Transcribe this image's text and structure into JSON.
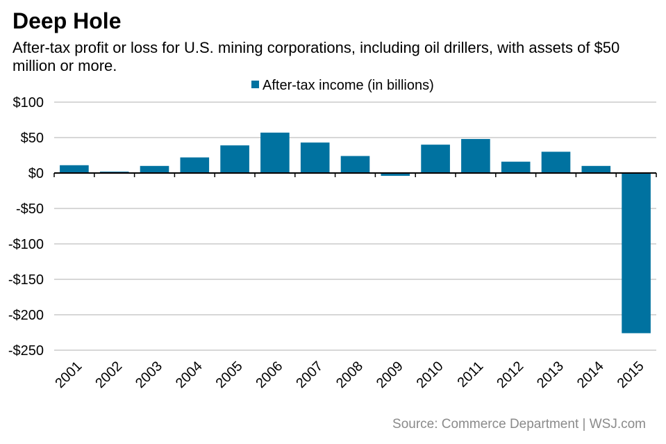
{
  "chart_data": {
    "type": "bar",
    "title": "Deep Hole",
    "subtitle": "After-tax profit or loss for U.S. mining corporations, including oil drillers, with assets of $50 million or more.",
    "categories": [
      "2001",
      "2002",
      "2003",
      "2004",
      "2005",
      "2006",
      "2007",
      "2008",
      "2009",
      "2010",
      "2011",
      "2012",
      "2013",
      "2014",
      "2015"
    ],
    "series": [
      {
        "name": "After-tax income (in billions)",
        "values": [
          11,
          2,
          10,
          22,
          39,
          57,
          43,
          24,
          -4,
          40,
          48,
          16,
          30,
          10,
          -226
        ]
      }
    ],
    "ylim": [
      -250,
      100
    ],
    "yticks": [
      100,
      50,
      0,
      -50,
      -100,
      -150,
      -200,
      -250
    ],
    "ytick_labels": [
      "$100",
      "$50",
      "$0",
      "-$50",
      "-$100",
      "-$150",
      "-$200",
      "-$250"
    ],
    "legend_position": "top-center",
    "grid": true,
    "colors": {
      "bar": "#0072a0",
      "grid": "#bfbfbf",
      "axis": "#000000"
    }
  },
  "source": "Source: Commerce Department  |  WSJ.com"
}
